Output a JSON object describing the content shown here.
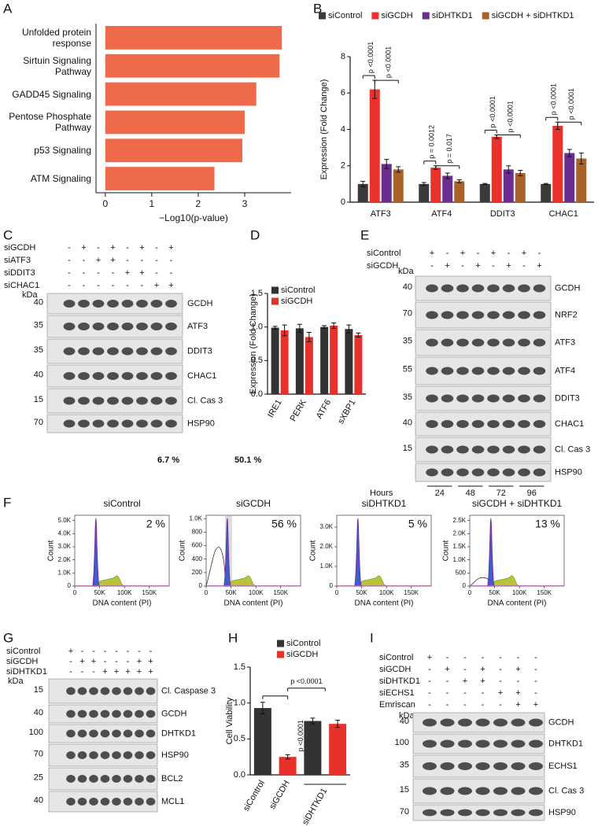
{
  "panel_labels": [
    "A",
    "B",
    "C",
    "D",
    "E",
    "F",
    "G",
    "H",
    "I"
  ],
  "chart_data": [
    {
      "type": "hbar",
      "categories": [
        "Unfolded protein response",
        "Sirtuin Signaling Pathway",
        "GADD45 Signaling",
        "Pentose Phosphate Pathway",
        "p53 Signaling",
        "ATM Signaling"
      ],
      "values": [
        3.8,
        3.75,
        3.25,
        3.0,
        2.95,
        2.35
      ],
      "color": "#ee6a4b",
      "xlim": [
        -0.2,
        4
      ],
      "xticks": [
        0,
        1,
        2,
        3
      ],
      "xlabel": "−Log10(p-value)"
    },
    {
      "type": "bar",
      "categories": [
        "ATF3",
        "ATF4",
        "DDIT3",
        "CHAC1"
      ],
      "series": [
        {
          "name": "siControl",
          "color": "#3a3a3a",
          "values": [
            1.0,
            1.0,
            1.0,
            1.0
          ],
          "errors": [
            0.15,
            0.08,
            0.03,
            0.03
          ]
        },
        {
          "name": "siGCDH",
          "color": "#e8322b",
          "values": [
            6.2,
            1.9,
            3.6,
            4.2
          ],
          "errors": [
            0.5,
            0.1,
            0.1,
            0.2
          ]
        },
        {
          "name": "siDHTKD1",
          "color": "#6b2d8f",
          "values": [
            2.1,
            1.45,
            1.8,
            2.7
          ],
          "errors": [
            0.25,
            0.15,
            0.2,
            0.2
          ]
        },
        {
          "name": "siGCDH + siDHTKD1",
          "color": "#a8622a",
          "values": [
            1.8,
            1.15,
            1.6,
            2.4
          ],
          "errors": [
            0.15,
            0.08,
            0.15,
            0.3
          ]
        }
      ],
      "ylim": [
        0,
        8
      ],
      "yticks": [
        0,
        2,
        4,
        6,
        8
      ],
      "ylabel": "Expression (Fold Change)",
      "p_values": [
        [
          "p <0.0001",
          "p <0.0001"
        ],
        [
          "p = 0.0012",
          "p = 0.017"
        ],
        [
          "p <0.0001",
          "p <0.0001"
        ],
        [
          "p <0.0001",
          "p <0.0001"
        ]
      ]
    },
    {
      "type": "bar",
      "categories": [
        "IRE1",
        "PERK",
        "ATF6",
        "sXBP1"
      ],
      "series": [
        {
          "name": "siControl",
          "color": "#333333",
          "values": [
            0.99,
            0.98,
            1.0,
            0.97
          ],
          "errors": [
            0.02,
            0.06,
            0.02,
            0.06
          ]
        },
        {
          "name": "siGCDH",
          "color": "#e8312a",
          "values": [
            0.95,
            0.85,
            1.02,
            0.88
          ],
          "errors": [
            0.08,
            0.07,
            0.04,
            0.03
          ]
        }
      ],
      "ylim": [
        0,
        1.5
      ],
      "yticks": [
        {
          "value": 0,
          "label": "0.0"
        },
        {
          "value": 0.5,
          "label": "0.5"
        },
        {
          "value": 1,
          "label": "1.0"
        },
        {
          "value": 1.5,
          "label": "1.5"
        }
      ],
      "ylabel": "Expression (Fold Change)"
    },
    {
      "type": "bar",
      "categories": [
        "siControl",
        "siGCDH",
        null,
        null
      ],
      "group_label": "siDHTKD1",
      "series": [
        {
          "name": "siControl",
          "color": "#333333",
          "values": [
            0.93,
            null,
            0.75,
            null
          ],
          "errors": [
            0.08,
            null,
            0.04,
            null
          ]
        },
        {
          "name": "siGCDH",
          "color": "#e8312a",
          "values": [
            null,
            0.25,
            null,
            0.71
          ],
          "errors": [
            null,
            0.03,
            null,
            0.05
          ]
        }
      ],
      "ylim": [
        0,
        1.5
      ],
      "yticks": [
        {
          "value": 0,
          "label": "0.0"
        },
        {
          "value": 0.5,
          "label": "0.5"
        },
        {
          "value": 1,
          "label": "1.0"
        },
        {
          "value": 1.5,
          "label": "1.5"
        }
      ],
      "ylabel": "Cell Viability",
      "p_values": [
        "p <0.0001",
        "p <0.0001"
      ]
    }
  ],
  "flow": {
    "xlabel": "DNA content (PI)",
    "ylabel": "Count",
    "xlim": [
      0,
      190000
    ],
    "xticks": [
      0,
      {
        "value": 50000,
        "label": "50K"
      },
      {
        "value": 100000,
        "label": "100K"
      },
      {
        "value": 150000,
        "label": "150K"
      }
    ],
    "plots": [
      {
        "title": "siControl",
        "percent": "2 %",
        "ylim": [
          0,
          5400
        ],
        "yticks": [
          0,
          {
            "value": 1000,
            "label": "1.0K"
          },
          {
            "value": 2000,
            "label": "2.0K"
          },
          {
            "value": 3000,
            "label": "3.0K"
          },
          {
            "value": 4000,
            "label": "4.0K"
          },
          {
            "value": 5000,
            "label": "5.0K"
          }
        ]
      },
      {
        "title": "siGCDH",
        "percent": "56 %",
        "ylim": [
          0,
          1050
        ],
        "yticks": [
          0,
          200,
          400,
          600,
          800,
          {
            "value": 1000,
            "label": "1.0K"
          }
        ]
      },
      {
        "title": "siDHTKD1",
        "percent": "5 %",
        "ylim": [
          0,
          3600
        ],
        "yticks": [
          0,
          {
            "value": 1000,
            "label": "1.0K"
          },
          {
            "value": 2000,
            "label": "2.0K"
          },
          {
            "value": 3000,
            "label": "3.0K"
          }
        ]
      },
      {
        "title": "siGCDH + siDHTKD1",
        "percent": "13 %",
        "ylim": [
          0,
          2700
        ],
        "yticks": [
          0,
          500,
          {
            "value": 1000,
            "label": "1.0K"
          },
          {
            "value": 1500,
            "label": "1.5K"
          },
          {
            "value": 2000,
            "label": "2.0K"
          },
          {
            "value": 2500,
            "label": "2.5K"
          }
        ]
      }
    ]
  },
  "blots": {
    "C": {
      "rows": [
        {
          "name": "siGCDH",
          "signs": [
            "-",
            "+",
            "-",
            "+",
            "-",
            "+",
            "-",
            "+"
          ]
        },
        {
          "name": "siATF3",
          "signs": [
            "-",
            "-",
            "+",
            "+",
            "-",
            "-",
            "-",
            "-"
          ]
        },
        {
          "name": "siDDIT3",
          "signs": [
            "-",
            "-",
            "-",
            "-",
            "+",
            "+",
            "-",
            "-"
          ]
        },
        {
          "name": "siCHAC1",
          "signs": [
            "-",
            "-",
            "-",
            "-",
            "-",
            "-",
            "+",
            "+"
          ]
        }
      ],
      "kda_label": "kDa",
      "bands": [
        {
          "name": "GCDH",
          "kda": 40
        },
        {
          "name": "ATF3",
          "kda": 35
        },
        {
          "name": "DDIT3",
          "kda": 35
        },
        {
          "name": "CHAC1",
          "kda": 40
        },
        {
          "name": "Cl. Cas 3",
          "kda": 15
        },
        {
          "name": "HSP90",
          "kda": 70
        }
      ]
    },
    "E": {
      "rows": [
        {
          "name": "siControl",
          "signs": [
            "+",
            "-",
            "+",
            "-",
            "+",
            "-",
            "+",
            "-"
          ]
        },
        {
          "name": "siGCDH",
          "signs": [
            "-",
            "+",
            "-",
            "+",
            "-",
            "+",
            "-",
            "+"
          ]
        }
      ],
      "kda_label": "kDa",
      "bands": [
        {
          "name": "GCDH",
          "kda": 40
        },
        {
          "name": "NRF2",
          "kda": 70
        },
        {
          "name": "ATF3",
          "kda": 35
        },
        {
          "name": "ATF4",
          "kda": 55
        },
        {
          "name": "DDIT3",
          "kda": 35
        },
        {
          "name": "CHAC1",
          "kda": 40
        },
        {
          "name": "Cl. Cas 3",
          "kda": 15
        },
        {
          "name": "HSP90"
        }
      ],
      "hours_label": "Hours",
      "hours": [
        24,
        48,
        72,
        96
      ]
    },
    "G": {
      "rows": [
        {
          "name": "siControl",
          "signs": [
            "+",
            "-",
            "-",
            "-",
            "-",
            "-",
            "-",
            "-"
          ]
        },
        {
          "name": "siGCDH",
          "signs": [
            "-",
            "+",
            "+",
            "-",
            "-",
            "-",
            "+",
            "+"
          ]
        },
        {
          "name": "siDHTKD1",
          "signs": [
            "-",
            "-",
            "-",
            "+",
            "+",
            "+",
            "+",
            "+"
          ]
        }
      ],
      "kda_label": "kDa",
      "bands": [
        {
          "name": "Cl. Caspase 3",
          "kda": 15
        },
        {
          "name": "GCDH",
          "kda": 40
        },
        {
          "name": "DHTKD1",
          "kda": 100
        },
        {
          "name": "HSP90",
          "kda": 70
        },
        {
          "name": "BCL2",
          "kda": 25
        },
        {
          "name": "MCL1",
          "kda": 40
        }
      ]
    },
    "I": {
      "rows": [
        {
          "name": "siControl",
          "signs": [
            "+",
            "-",
            "-",
            "-",
            "-",
            "-",
            "-"
          ]
        },
        {
          "name": "siGCDH",
          "signs": [
            "-",
            "+",
            "-",
            "+",
            "-",
            "+",
            "-"
          ]
        },
        {
          "name": "siDHTKD1",
          "signs": [
            "-",
            "-",
            "+",
            "+",
            "-",
            "-",
            "-"
          ]
        },
        {
          "name": "siECHS1",
          "signs": [
            "-",
            "-",
            "-",
            "-",
            "+",
            "+",
            "-"
          ]
        },
        {
          "name": "Emriscan",
          "signs": [
            "-",
            "-",
            "-",
            "-",
            "-",
            "+",
            "+"
          ]
        }
      ],
      "kda_label": "kDa",
      "bands": [
        {
          "name": "GCDH",
          "kda": 40
        },
        {
          "name": "DHTKD1",
          "kda": 100
        },
        {
          "name": "ECHS1",
          "kda": 35
        },
        {
          "name": "Cl. Cas 3",
          "kda": 15
        },
        {
          "name": "HSP90",
          "kda": 70
        }
      ]
    }
  },
  "footnotes": [
    "6.7 %",
    "50.1 %"
  ]
}
